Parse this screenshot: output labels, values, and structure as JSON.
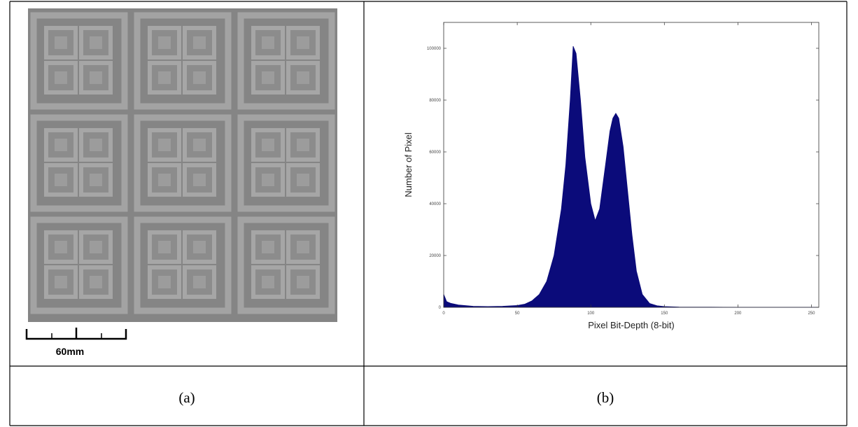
{
  "panels": {
    "a": {
      "scale_bar": "60mm",
      "caption": "(a)"
    },
    "b": {
      "caption": "(b)"
    }
  },
  "chart_data": {
    "type": "area",
    "xlabel": "Pixel Bit-Depth (8-bit)",
    "ylabel": "Number of Pixel",
    "color": "#0b0b7a",
    "x": [
      0,
      2,
      5,
      10,
      20,
      30,
      40,
      50,
      55,
      60,
      65,
      70,
      75,
      80,
      83,
      86,
      88,
      90,
      93,
      96,
      100,
      103,
      106,
      110,
      113,
      115,
      117,
      119,
      122,
      125,
      128,
      131,
      135,
      140,
      145,
      150,
      160,
      200,
      255
    ],
    "values": [
      5000,
      2200,
      1500,
      900,
      400,
      300,
      400,
      700,
      1200,
      2500,
      5000,
      10000,
      20000,
      38000,
      55000,
      80000,
      100800,
      98000,
      80000,
      58000,
      40000,
      33500,
      38000,
      55000,
      68000,
      73000,
      74900,
      73000,
      62000,
      45000,
      28000,
      14000,
      5000,
      1500,
      600,
      300,
      100,
      0,
      0
    ],
    "xlim": [
      0,
      255
    ],
    "xticks": [
      0,
      50,
      100,
      150,
      200,
      250
    ],
    "ylim": [
      0,
      110000
    ],
    "yticks": [
      0,
      20000,
      40000,
      60000,
      80000,
      100000
    ]
  }
}
